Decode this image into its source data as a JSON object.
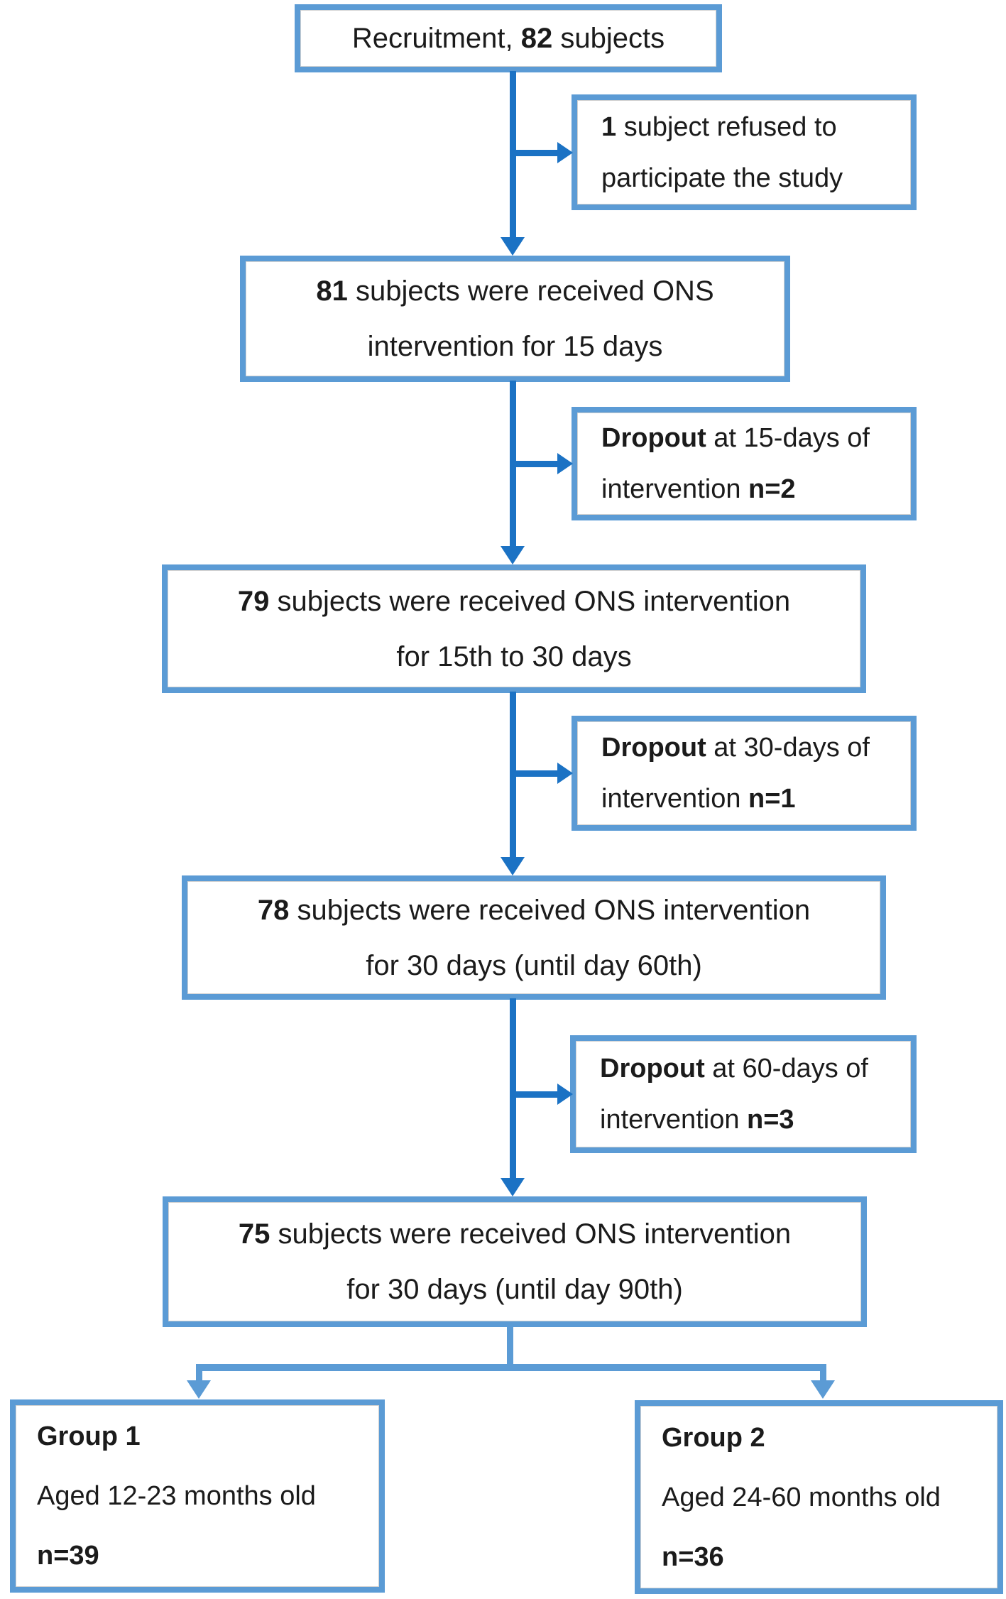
{
  "colors": {
    "box_border": "#5B9BD5",
    "connector_dark": "#1B72C4",
    "connector_light": "#5B9BD5",
    "text": "#1B1B1B",
    "background": "#FFFFFF"
  },
  "main_boxes": [
    {
      "name": "recruitment",
      "lines": [
        [
          {
            "text": "Recruitment, ",
            "bold": false
          },
          {
            "text": "82",
            "bold": true
          },
          {
            "text": " subjects",
            "bold": false
          }
        ]
      ]
    },
    {
      "name": "ons-15-days",
      "lines": [
        [
          {
            "text": "81",
            "bold": true
          },
          {
            "text": " subjects were received ONS",
            "bold": false
          }
        ],
        [
          {
            "text": "intervention for 15 days",
            "bold": false
          }
        ]
      ]
    },
    {
      "name": "ons-15-to-30-days",
      "lines": [
        [
          {
            "text": "79",
            "bold": true
          },
          {
            "text": " subjects were received ONS intervention",
            "bold": false
          }
        ],
        [
          {
            "text": "for 15th to 30 days",
            "bold": false
          }
        ]
      ]
    },
    {
      "name": "ons-30-days-until-60",
      "lines": [
        [
          {
            "text": "78",
            "bold": true
          },
          {
            "text": " subjects were received ONS intervention",
            "bold": false
          }
        ],
        [
          {
            "text": "for 30 days (until day 60th)",
            "bold": false
          }
        ]
      ]
    },
    {
      "name": "ons-30-days-until-90",
      "lines": [
        [
          {
            "text": "75",
            "bold": true
          },
          {
            "text": " subjects were received ONS intervention",
            "bold": false
          }
        ],
        [
          {
            "text": "for 30 days (until day 90th)",
            "bold": false
          }
        ]
      ]
    }
  ],
  "side_boxes": [
    {
      "name": "refused-to-participate",
      "lines": [
        [
          {
            "text": "1",
            "bold": true
          },
          {
            "text": " subject refused to",
            "bold": false
          }
        ],
        [
          {
            "text": "participate the study",
            "bold": false
          }
        ]
      ]
    },
    {
      "name": "dropout-15-days",
      "lines": [
        [
          {
            "text": "Dropout",
            "bold": true
          },
          {
            "text": " at 15-days of",
            "bold": false
          }
        ],
        [
          {
            "text": "intervention ",
            "bold": false
          },
          {
            "text": "n=2",
            "bold": true
          }
        ]
      ]
    },
    {
      "name": "dropout-30-days",
      "lines": [
        [
          {
            "text": "Dropout",
            "bold": true
          },
          {
            "text": " at 30-days of",
            "bold": false
          }
        ],
        [
          {
            "text": "intervention ",
            "bold": false
          },
          {
            "text": "n=1",
            "bold": true
          }
        ]
      ]
    },
    {
      "name": "dropout-60-days",
      "lines": [
        [
          {
            "text": "Dropout",
            "bold": true
          },
          {
            "text": " at 60-days of",
            "bold": false
          }
        ],
        [
          {
            "text": "intervention ",
            "bold": false
          },
          {
            "text": "n=3",
            "bold": true
          }
        ]
      ]
    }
  ],
  "group_boxes": [
    {
      "name": "group-1",
      "lines": [
        [
          {
            "text": "Group 1",
            "bold": true
          }
        ],
        [
          {
            "text": "Aged 12-23 months old",
            "bold": false
          }
        ],
        [
          {
            "text": "n=39",
            "bold": true
          }
        ]
      ]
    },
    {
      "name": "group-2",
      "lines": [
        [
          {
            "text": "Group 2",
            "bold": true
          }
        ],
        [
          {
            "text": "Aged 24-60 months old",
            "bold": false
          }
        ],
        [
          {
            "text": "n=36",
            "bold": true
          }
        ]
      ]
    }
  ]
}
